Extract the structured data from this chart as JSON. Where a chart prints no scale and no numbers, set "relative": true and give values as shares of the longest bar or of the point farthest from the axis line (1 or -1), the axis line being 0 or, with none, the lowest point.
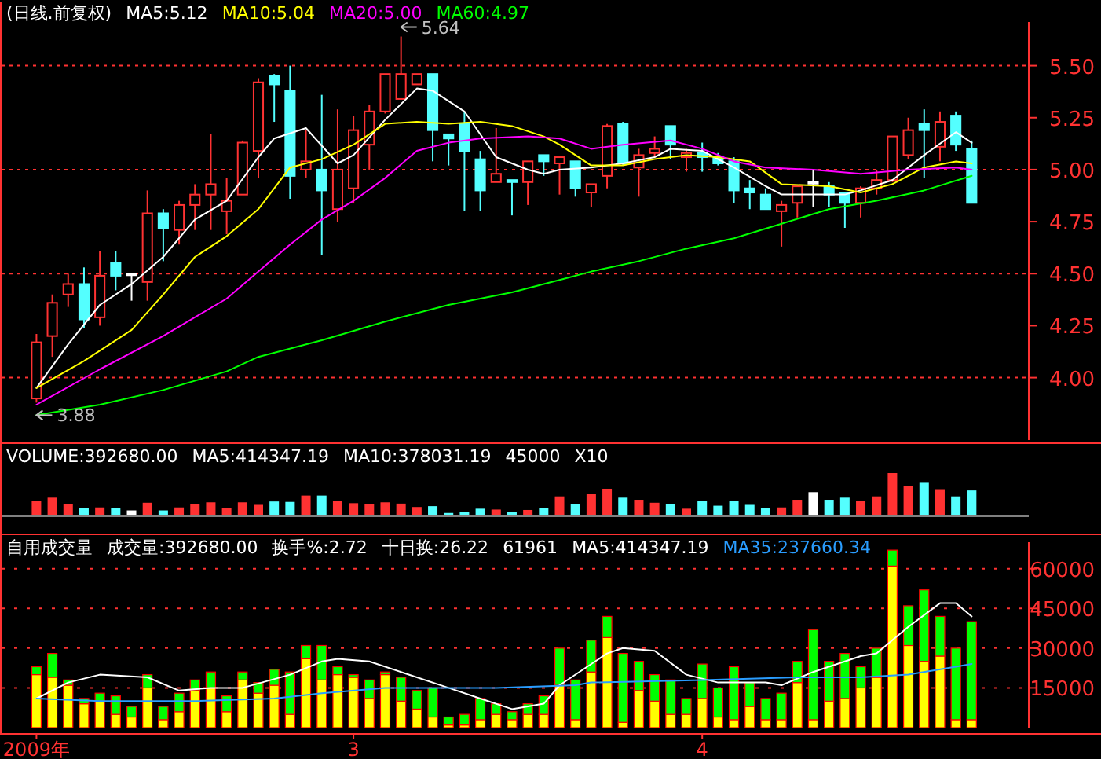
{
  "chart_data": [
    {
      "type": "candlestick",
      "title": "(日线.前复权)",
      "categories": [
        null,
        null,
        null,
        null,
        null,
        null,
        null,
        null,
        null,
        null,
        null,
        null,
        null,
        null,
        null,
        null,
        null,
        null,
        null,
        null,
        null,
        null,
        null,
        null,
        null,
        null,
        null,
        null,
        null,
        null,
        null,
        null,
        null,
        null,
        null,
        null,
        null,
        null,
        null,
        null,
        null,
        null,
        null,
        null,
        null,
        null,
        null,
        null,
        null,
        null,
        null,
        null,
        null,
        null,
        null,
        null,
        null,
        null,
        null,
        null
      ],
      "ohlc": [
        [
          3.9,
          4.21,
          3.88,
          4.17
        ],
        [
          4.2,
          4.4,
          4.1,
          4.36
        ],
        [
          4.4,
          4.5,
          4.34,
          4.45
        ],
        [
          4.45,
          4.53,
          4.24,
          4.28
        ],
        [
          4.29,
          4.61,
          4.25,
          4.49
        ],
        [
          4.55,
          4.61,
          4.42,
          4.49
        ],
        [
          4.5,
          4.5,
          4.37,
          4.5
        ],
        [
          4.46,
          4.9,
          4.37,
          4.79
        ],
        [
          4.79,
          4.81,
          4.56,
          4.72
        ],
        [
          4.71,
          4.85,
          4.64,
          4.83
        ],
        [
          4.83,
          4.93,
          4.71,
          4.88
        ],
        [
          4.88,
          5.17,
          4.71,
          4.93
        ],
        [
          4.8,
          4.96,
          4.69,
          4.85
        ],
        [
          4.88,
          5.14,
          4.88,
          5.13
        ],
        [
          5.09,
          5.44,
          4.96,
          5.42
        ],
        [
          5.45,
          5.46,
          5.23,
          5.41
        ],
        [
          5.38,
          5.5,
          4.86,
          4.97
        ],
        [
          5.0,
          5.19,
          4.96,
          5.04
        ],
        [
          5.0,
          5.36,
          4.59,
          4.9
        ],
        [
          4.81,
          5.29,
          4.75,
          5.0
        ],
        [
          4.91,
          5.26,
          4.84,
          5.19
        ],
        [
          5.12,
          5.31,
          5.0,
          5.28
        ],
        [
          5.28,
          5.46,
          5.27,
          5.46
        ],
        [
          5.34,
          5.64,
          5.34,
          5.46
        ],
        [
          5.41,
          5.46,
          5.41,
          5.46
        ],
        [
          5.46,
          5.46,
          5.04,
          5.19
        ],
        [
          5.17,
          5.17,
          5.02,
          5.15
        ],
        [
          5.22,
          5.28,
          4.8,
          5.09
        ],
        [
          5.05,
          5.09,
          4.8,
          4.9
        ],
        [
          4.94,
          5.2,
          4.94,
          4.98
        ],
        [
          4.95,
          4.95,
          4.78,
          4.94
        ],
        [
          4.94,
          5.04,
          4.83,
          5.04
        ],
        [
          5.07,
          5.07,
          4.97,
          5.04
        ],
        [
          5.03,
          5.06,
          4.88,
          5.06
        ],
        [
          5.04,
          5.04,
          4.87,
          4.91
        ],
        [
          4.89,
          4.93,
          4.82,
          4.93
        ],
        [
          4.97,
          5.22,
          4.91,
          5.21
        ],
        [
          5.22,
          5.23,
          5.02,
          5.03
        ],
        [
          5.01,
          5.1,
          4.87,
          5.07
        ],
        [
          5.08,
          5.16,
          5.06,
          5.1
        ],
        [
          5.21,
          5.21,
          5.05,
          5.12
        ],
        [
          5.06,
          5.1,
          4.99,
          5.08
        ],
        [
          5.08,
          5.13,
          4.99,
          5.06
        ],
        [
          5.06,
          5.08,
          5.02,
          5.03
        ],
        [
          5.04,
          5.06,
          4.84,
          4.9
        ],
        [
          4.91,
          4.95,
          4.81,
          4.89
        ],
        [
          4.88,
          4.91,
          4.81,
          4.81
        ],
        [
          4.8,
          4.85,
          4.63,
          4.83
        ],
        [
          4.84,
          4.92,
          4.77,
          4.92
        ],
        [
          4.94,
          5.0,
          4.82,
          4.94
        ],
        [
          4.92,
          4.94,
          4.82,
          4.88
        ],
        [
          4.89,
          4.89,
          4.72,
          4.84
        ],
        [
          4.84,
          4.92,
          4.77,
          4.91
        ],
        [
          4.91,
          5.0,
          4.88,
          4.95
        ],
        [
          4.95,
          5.16,
          4.94,
          5.16
        ],
        [
          5.07,
          5.25,
          5.05,
          5.19
        ],
        [
          5.22,
          5.29,
          4.96,
          5.19
        ],
        [
          5.11,
          5.28,
          5.04,
          5.23
        ],
        [
          5.26,
          5.28,
          5.09,
          5.12
        ],
        [
          5.1,
          5.14,
          4.84,
          4.84
        ]
      ],
      "colors": [
        "#ff3232",
        "#ff3232",
        "#ff3232",
        "#54ffff",
        "#ff3232",
        "#54ffff",
        "#ffffff",
        "#ff3232",
        "#54ffff",
        "#ff3232",
        "#ff3232",
        "#ff3232",
        "#ff3232",
        "#ff3232",
        "#ff3232",
        "#54ffff",
        "#54ffff",
        "#ff3232",
        "#54ffff",
        "#ff3232",
        "#ff3232",
        "#ff3232",
        "#ff3232",
        "#ff3232",
        "#ff3232",
        "#54ffff",
        "#54ffff",
        "#54ffff",
        "#54ffff",
        "#ff3232",
        "#54ffff",
        "#ff3232",
        "#54ffff",
        "#ff3232",
        "#54ffff",
        "#ff3232",
        "#ff3232",
        "#54ffff",
        "#ff3232",
        "#ff3232",
        "#54ffff",
        "#ff3232",
        "#54ffff",
        "#54ffff",
        "#54ffff",
        "#54ffff",
        "#54ffff",
        "#ff3232",
        "#ff3232",
        "#ffffff",
        "#54ffff",
        "#54ffff",
        "#ff3232",
        "#ff3232",
        "#ff3232",
        "#ff3232",
        "#54ffff",
        "#ff3232",
        "#54ffff",
        "#54ffff"
      ],
      "series": [
        {
          "type": "line",
          "name": "MA5:5.12",
          "color": "#ffffff",
          "values": [
            3.95,
            null,
            4.16,
            null,
            4.35,
            null,
            4.45,
            null,
            4.58,
            null,
            4.76,
            null,
            4.85,
            null,
            5.06,
            5.15,
            null,
            5.2,
            null,
            5.03,
            5.07,
            null,
            5.24,
            null,
            5.39,
            5.38,
            null,
            5.28,
            null,
            5.06,
            null,
            5.0,
            4.98,
            5.0,
            null,
            5.01,
            null,
            5.03,
            null,
            5.06,
            5.1,
            null,
            5.09,
            null,
            5.01,
            null,
            4.92,
            4.88,
            null,
            4.88,
            null,
            4.88,
            4.9,
            null,
            4.95,
            null,
            5.07,
            null,
            5.18,
            5.13
          ]
        },
        {
          "type": "line",
          "name": "MA10:5.04",
          "color": "#ffff00",
          "values": [
            3.95,
            null,
            null,
            4.08,
            null,
            null,
            4.23,
            null,
            4.4,
            null,
            4.58,
            null,
            4.68,
            null,
            4.81,
            null,
            5.01,
            null,
            5.05,
            null,
            5.12,
            null,
            5.22,
            null,
            5.23,
            null,
            5.22,
            null,
            5.23,
            null,
            5.21,
            null,
            5.16,
            5.12,
            null,
            5.02,
            null,
            5.02,
            null,
            5.05,
            null,
            5.07,
            null,
            5.06,
            null,
            5.04,
            null,
            4.93,
            null,
            null,
            4.92,
            null,
            4.89,
            null,
            4.93,
            null,
            5.01,
            null,
            5.04,
            5.03
          ]
        },
        {
          "type": "line",
          "name": "MA20:5.00",
          "color": "#ff00ff",
          "values": [
            3.87,
            null,
            null,
            null,
            4.04,
            null,
            null,
            null,
            4.2,
            null,
            null,
            null,
            4.38,
            null,
            4.51,
            null,
            4.64,
            null,
            4.76,
            null,
            4.85,
            null,
            4.96,
            null,
            5.09,
            null,
            5.13,
            null,
            5.15,
            null,
            null,
            5.16,
            null,
            5.15,
            null,
            5.1,
            null,
            5.12,
            null,
            null,
            5.14,
            null,
            5.1,
            null,
            5.04,
            null,
            5.01,
            null,
            null,
            5.0,
            null,
            null,
            4.98,
            null,
            null,
            5.0,
            null,
            null,
            5.01,
            5.0
          ]
        },
        {
          "type": "line",
          "name": "MA60:4.97",
          "color": "#00ff00",
          "values": [
            3.82,
            null,
            null,
            null,
            3.87,
            null,
            null,
            null,
            3.94,
            null,
            null,
            null,
            4.03,
            null,
            4.1,
            null,
            null,
            null,
            4.18,
            null,
            null,
            null,
            4.27,
            null,
            null,
            null,
            4.35,
            null,
            null,
            null,
            4.41,
            null,
            null,
            4.47,
            null,
            4.51,
            null,
            null,
            4.56,
            null,
            null,
            4.62,
            null,
            null,
            4.67,
            null,
            null,
            4.74,
            null,
            null,
            4.81,
            null,
            null,
            4.85,
            null,
            null,
            4.9,
            null,
            null,
            4.97
          ]
        }
      ],
      "ylim": [
        3.7,
        5.71
      ],
      "yticks": [
        {
          "value": 4.0,
          "label": "4.00"
        },
        4.25,
        {
          "value": 4.5,
          "label": "4.50"
        },
        4.75,
        {
          "value": 5.0,
          "label": "5.00"
        },
        5.25,
        {
          "value": 5.5,
          "label": "5.50"
        }
      ],
      "ref_lines": [
        {
          "axis": "y",
          "value": 4.0,
          "color": "#ff3232",
          "line_style": "dotted"
        },
        {
          "axis": "y",
          "value": 4.5,
          "color": "#ff3232",
          "line_style": "dotted"
        },
        {
          "axis": "y",
          "value": 5.0,
          "color": "#ff3232",
          "line_style": "dotted"
        },
        {
          "axis": "y",
          "value": 5.5,
          "color": "#ff3232",
          "line_style": "dotted"
        }
      ],
      "annotations": [
        "3.88",
        "5.64"
      ],
      "tick_labels": "y"
    },
    {
      "type": "bar",
      "title": "VOLUME:392680.00",
      "relative": true,
      "categories": [
        null,
        null,
        null,
        null,
        null,
        null,
        null,
        null,
        null,
        null,
        null,
        null,
        null,
        null,
        null,
        null,
        null,
        null,
        null,
        null,
        null,
        null,
        null,
        null,
        null,
        null,
        null,
        null,
        null,
        null,
        null,
        null,
        null,
        null,
        null,
        null,
        null,
        null,
        null,
        null,
        null,
        null,
        null,
        null,
        null,
        null,
        null,
        null,
        null,
        null,
        null,
        null,
        null,
        null,
        null,
        null,
        null,
        null,
        null,
        null
      ],
      "values": [
        0.35,
        0.42,
        0.27,
        0.17,
        0.19,
        0.17,
        0.12,
        0.3,
        0.12,
        0.19,
        0.26,
        0.31,
        0.18,
        0.31,
        0.25,
        0.33,
        0.32,
        0.47,
        0.47,
        0.34,
        0.29,
        0.26,
        0.31,
        0.28,
        0.2,
        0.22,
        0.06,
        0.08,
        0.16,
        0.14,
        0.09,
        0.13,
        0.17,
        0.45,
        0.26,
        0.5,
        0.63,
        0.42,
        0.37,
        0.3,
        0.26,
        0.16,
        0.35,
        0.23,
        0.35,
        0.25,
        0.17,
        0.19,
        0.37,
        0.55,
        0.37,
        0.42,
        0.35,
        0.45,
        1,
        0.69,
        0.77,
        0.62,
        0.45,
        0.59
      ],
      "colors": [
        "#ff3232",
        "#ff3232",
        "#ff3232",
        "#54ffff",
        "#ff3232",
        "#54ffff",
        "#ffffff",
        "#ff3232",
        "#54ffff",
        "#ff3232",
        "#ff3232",
        "#ff3232",
        "#ff3232",
        "#ff3232",
        "#ff3232",
        "#54ffff",
        "#54ffff",
        "#ff3232",
        "#54ffff",
        "#ff3232",
        "#ff3232",
        "#ff3232",
        "#ff3232",
        "#ff3232",
        "#ff3232",
        "#54ffff",
        "#54ffff",
        "#54ffff",
        "#54ffff",
        "#ff3232",
        "#54ffff",
        "#ff3232",
        "#54ffff",
        "#ff3232",
        "#54ffff",
        "#ff3232",
        "#ff3232",
        "#54ffff",
        "#ff3232",
        "#ff3232",
        "#54ffff",
        "#ff3232",
        "#54ffff",
        "#54ffff",
        "#54ffff",
        "#54ffff",
        "#54ffff",
        "#ff3232",
        "#ff3232",
        "#ffffff",
        "#54ffff",
        "#54ffff",
        "#ff3232",
        "#ff3232",
        "#ff3232",
        "#ff3232",
        "#54ffff",
        "#ff3232",
        "#54ffff",
        "#54ffff"
      ],
      "annotations": [
        "MA5:414347.19",
        "MA10:378031.19",
        "45000",
        "X10"
      ],
      "tick_labels": false
    },
    {
      "type": "bar",
      "stacked": true,
      "title": "自用成交量",
      "categories": [
        "2009年",
        null,
        null,
        null,
        null,
        null,
        null,
        null,
        null,
        null,
        null,
        null,
        null,
        null,
        null,
        null,
        null,
        null,
        null,
        null,
        "3",
        null,
        null,
        null,
        null,
        null,
        null,
        null,
        null,
        null,
        null,
        null,
        null,
        null,
        null,
        null,
        null,
        null,
        null,
        null,
        null,
        null,
        "4",
        null,
        null,
        null,
        null,
        null,
        null,
        null,
        null,
        null,
        null,
        null,
        null,
        null,
        null,
        null,
        null,
        null
      ],
      "series": [
        {
          "color": "#ffff00",
          "values": [
            20000,
            19000,
            16000,
            9000,
            10000,
            5000,
            4000,
            15000,
            3000,
            6000,
            14000,
            15000,
            6000,
            18000,
            13000,
            16000,
            5000,
            26000,
            18000,
            20000,
            19000,
            11000,
            20000,
            10000,
            7000,
            4000,
            1000,
            1000,
            3000,
            5000,
            3000,
            5000,
            5000,
            16000,
            3000,
            21000,
            34000,
            2000,
            14000,
            10000,
            5000,
            5000,
            11000,
            4000,
            3000,
            8000,
            3000,
            3000,
            17000,
            3000,
            10000,
            11000,
            15000,
            19000,
            61000,
            31000,
            25000,
            27000,
            3000,
            3000
          ]
        },
        {
          "color": "#00ff00",
          "values": [
            3000,
            9000,
            2000,
            2000,
            3000,
            7000,
            4000,
            5000,
            5000,
            7000,
            4000,
            6000,
            6000,
            3000,
            4000,
            6000,
            16000,
            5000,
            13000,
            3000,
            1000,
            7000,
            1000,
            9000,
            7000,
            11000,
            3000,
            4000,
            8000,
            4000,
            3000,
            4000,
            7000,
            14000,
            15000,
            12000,
            8000,
            26000,
            11000,
            10000,
            13000,
            6000,
            13000,
            11000,
            20000,
            9000,
            8000,
            10000,
            8000,
            34000,
            15000,
            17000,
            8000,
            11000,
            6000,
            15000,
            27000,
            15000,
            27000,
            37000
          ]
        },
        {
          "type": "line",
          "name": "MA5:414347.19",
          "color": "#ffffff",
          "values": [
            11000,
            null,
            17000,
            null,
            20000,
            null,
            null,
            19000,
            null,
            14000,
            null,
            15000,
            null,
            15000,
            null,
            null,
            20000,
            null,
            25000,
            26000,
            null,
            25000,
            null,
            21000,
            null,
            null,
            15000,
            null,
            11000,
            null,
            7000,
            null,
            9000,
            16000,
            null,
            null,
            28000,
            30000,
            null,
            29000,
            null,
            20000,
            null,
            17000,
            null,
            null,
            17000,
            16000,
            null,
            21000,
            null,
            null,
            27000,
            28000,
            null,
            38000,
            null,
            47000,
            47000,
            42000
          ]
        },
        {
          "type": "line",
          "name": "MA35:237660.34",
          "color": "#2a9dff",
          "values": [
            11000,
            null,
            null,
            null,
            10000,
            null,
            null,
            null,
            null,
            null,
            10000,
            null,
            null,
            null,
            null,
            11000,
            null,
            null,
            13000,
            null,
            null,
            null,
            15000,
            null,
            null,
            null,
            null,
            null,
            null,
            15000,
            null,
            null,
            null,
            null,
            16000,
            17000,
            null,
            null,
            null,
            null,
            null,
            null,
            18000,
            null,
            null,
            null,
            null,
            null,
            19000,
            null,
            null,
            null,
            19000,
            null,
            null,
            20000,
            null,
            null,
            23000,
            24000
          ]
        }
      ],
      "ylim": [
        0,
        70000
      ],
      "yticks": [
        15000,
        30000,
        45000,
        60000
      ],
      "grid": "y",
      "annotations": [
        "成交量:392680.00",
        "换手%:2.72",
        "十日换:26.22",
        "61961"
      ]
    }
  ]
}
